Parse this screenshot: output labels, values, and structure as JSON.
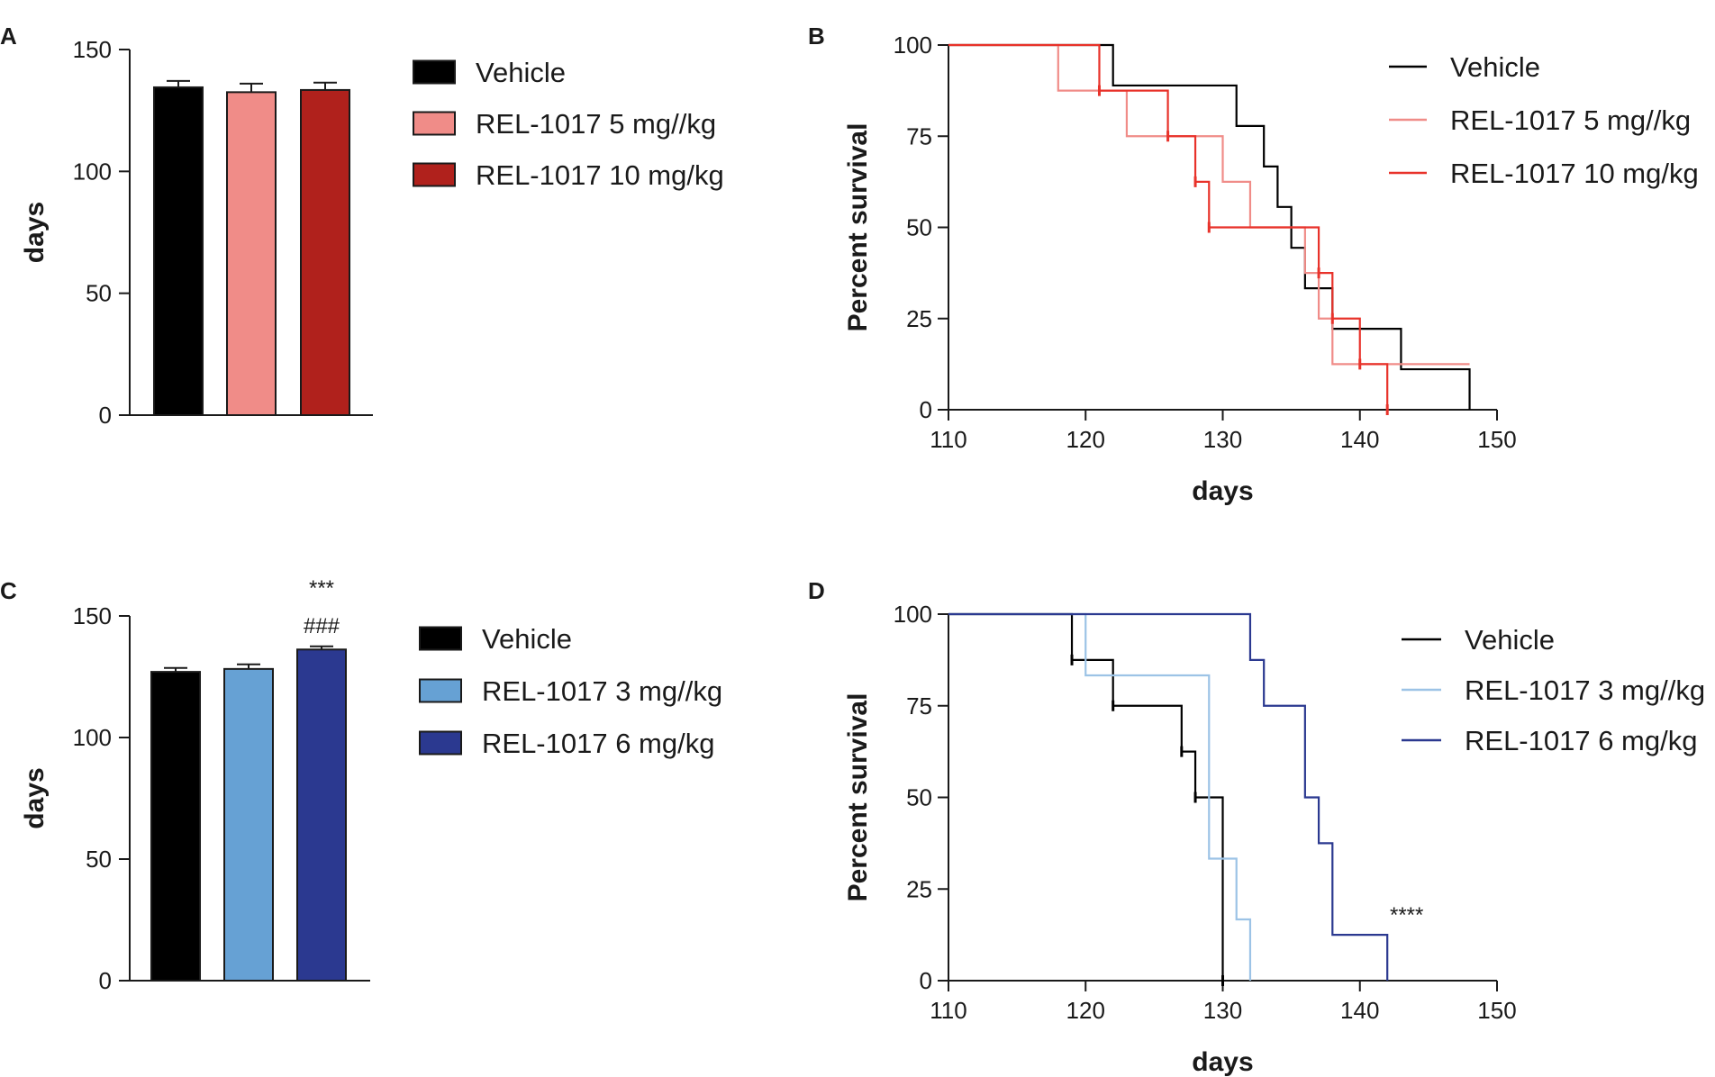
{
  "chart_data": [
    {
      "panel": "A",
      "type": "bar",
      "ylabel": "days",
      "ylim": [
        0,
        150
      ],
      "yticks": [
        0,
        50,
        100,
        150
      ],
      "categories": [
        "Vehicle",
        "REL-1017 5 mg//kg",
        "REL-1017 10 mg/kg"
      ],
      "values": [
        134.5,
        132.5,
        133.4
      ],
      "errors": [
        2.6,
        3.5,
        3.0
      ],
      "colors": [
        "#000000",
        "#f08c88",
        "#b0211c"
      ],
      "legend": [
        "Vehicle",
        "REL-1017 5 mg//kg",
        "REL-1017 10 mg/kg"
      ],
      "annotations": []
    },
    {
      "panel": "B",
      "type": "line",
      "subtype": "kaplan-meier",
      "xlabel": "days",
      "ylabel": "Percent survival",
      "xlim": [
        110,
        150
      ],
      "ylim": [
        0,
        100
      ],
      "xticks": [
        110,
        120,
        130,
        140,
        150
      ],
      "yticks": [
        0,
        25,
        50,
        75,
        100
      ],
      "series": [
        {
          "name": "Vehicle",
          "color": "#000000",
          "width": 2.2,
          "x": [
            110,
            122,
            131,
            133,
            134,
            135,
            136,
            138,
            139,
            143,
            148
          ],
          "y": [
            100,
            88.9,
            77.8,
            66.7,
            55.6,
            44.4,
            33.3,
            22.2,
            22.2,
            11.1,
            0
          ],
          "censored": []
        },
        {
          "name": "REL-1017 5 mg//kg",
          "color": "#f08c88",
          "width": 2.2,
          "x": [
            110,
            118,
            123,
            130,
            132,
            136,
            137,
            138,
            148
          ],
          "y": [
            100,
            87.5,
            75,
            62.5,
            50,
            37.5,
            25,
            12.5,
            12.5
          ],
          "censored": []
        },
        {
          "name": "REL-1017 10 mg/kg",
          "color": "#e8322a",
          "width": 2.2,
          "x": [
            110,
            121,
            126,
            128,
            129,
            137,
            138,
            140,
            142
          ],
          "y": [
            100,
            87.5,
            75,
            62.5,
            50,
            37.5,
            25,
            12.5,
            0
          ],
          "censored": [
            [
              121,
              87.5
            ],
            [
              126,
              75
            ],
            [
              128,
              62.5
            ],
            [
              129,
              50
            ],
            [
              137,
              37.5
            ],
            [
              138,
              25
            ],
            [
              140,
              12.5
            ],
            [
              142,
              0
            ]
          ]
        }
      ],
      "legend": [
        "Vehicle",
        "REL-1017 5 mg//kg",
        "REL-1017 10 mg/kg"
      ],
      "annotations": []
    },
    {
      "panel": "C",
      "type": "bar",
      "ylabel": "days",
      "ylim": [
        0,
        150
      ],
      "yticks": [
        0,
        50,
        100,
        150
      ],
      "categories": [
        "Vehicle",
        "REL-1017 3 mg//kg",
        "REL-1017 6 mg/kg"
      ],
      "values": [
        127,
        128.2,
        136.2
      ],
      "errors": [
        1.6,
        1.9,
        1.3
      ],
      "colors": [
        "#000000",
        "#66a1d4",
        "#2b3990"
      ],
      "legend": [
        "Vehicle",
        "REL-1017 3 mg//kg",
        "REL-1017 6 mg/kg"
      ],
      "annotations": [
        "***",
        "###"
      ]
    },
    {
      "panel": "D",
      "type": "line",
      "subtype": "kaplan-meier",
      "xlabel": "days",
      "ylabel": "Percent survival",
      "xlim": [
        110,
        150
      ],
      "ylim": [
        0,
        100
      ],
      "xticks": [
        110,
        120,
        130,
        140,
        150
      ],
      "yticks": [
        0,
        25,
        50,
        75,
        100
      ],
      "series": [
        {
          "name": "Vehicle",
          "color": "#000000",
          "width": 2.2,
          "x": [
            110,
            119,
            122,
            127,
            128,
            130
          ],
          "y": [
            100,
            87.5,
            75,
            62.5,
            50,
            0
          ],
          "censored": [
            [
              119,
              87.5
            ],
            [
              122,
              75
            ],
            [
              127,
              62.5
            ],
            [
              128,
              50
            ],
            [
              130,
              0
            ]
          ]
        },
        {
          "name": "REL-1017 3 mg//kg",
          "color": "#9cc3e6",
          "width": 2.2,
          "x": [
            110,
            120,
            129,
            131,
            132
          ],
          "y": [
            100,
            83.3,
            33.3,
            16.7,
            0
          ],
          "censored": []
        },
        {
          "name": "REL-1017 6 mg/kg",
          "color": "#2b3990",
          "width": 2.2,
          "x": [
            110,
            132,
            133,
            136,
            137,
            138,
            142
          ],
          "y": [
            100,
            87.5,
            75,
            50,
            37.5,
            12.5,
            0
          ],
          "censored": []
        }
      ],
      "legend": [
        "Vehicle",
        "REL-1017 3 mg//kg",
        "REL-1017 6 mg/kg"
      ],
      "annotations": [
        "****"
      ]
    }
  ]
}
